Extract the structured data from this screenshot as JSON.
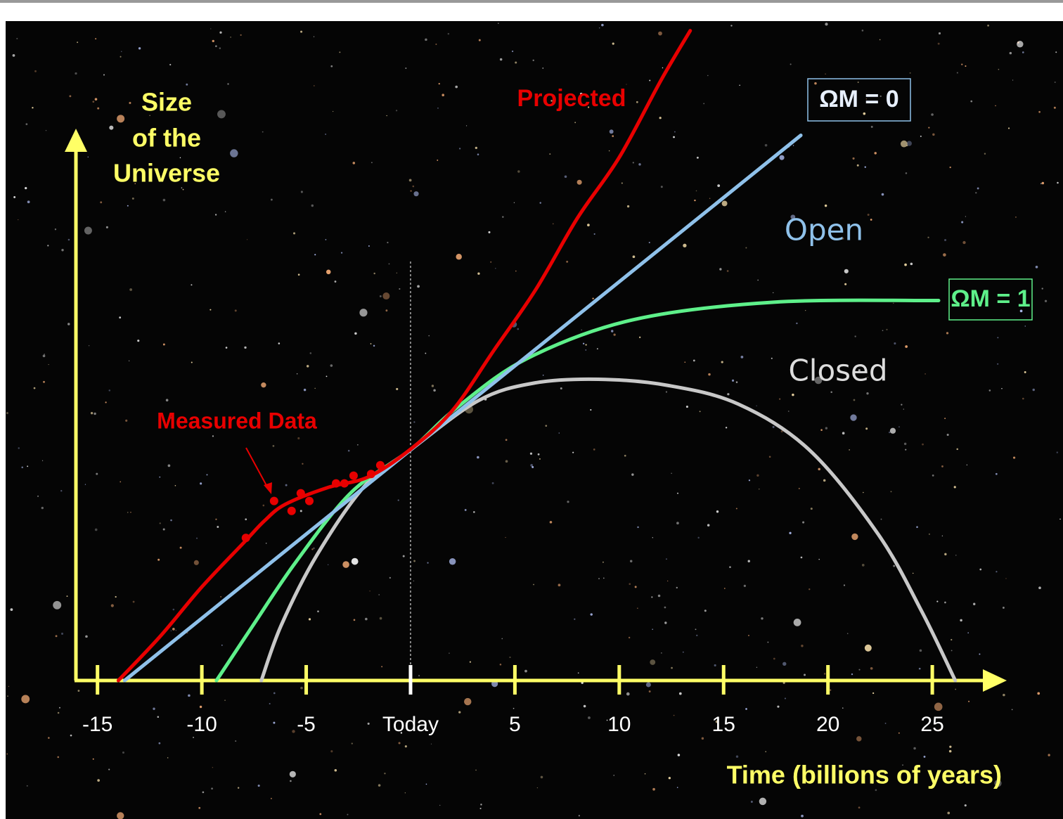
{
  "chart_data": {
    "type": "line",
    "y_label": [
      "Size",
      "of the",
      "Universe"
    ],
    "x_label": "Time (billions of years)",
    "annotations": [
      "Open",
      "Closed"
    ],
    "xlim": [
      -16,
      28.5
    ],
    "ylim": [
      0,
      120
    ],
    "xticks": [
      -15,
      -10,
      -5,
      {
        "value": 0,
        "label": "Today"
      },
      5,
      10,
      15,
      20,
      25
    ],
    "series": [
      {
        "name": "Projected",
        "color": "#e80000",
        "x": [
          -14,
          -12,
          -10,
          -8,
          -7,
          -6,
          -4,
          -2,
          0,
          2,
          4,
          6,
          8,
          10,
          12,
          13.4
        ],
        "values": [
          0,
          8,
          17,
          25,
          29,
          32,
          35,
          37,
          42,
          49,
          60,
          71,
          84,
          95,
          109,
          118
        ]
      },
      {
        "name": "ΩM = 0",
        "color": "#8fc1ea",
        "x": [
          -13.7,
          18.7
        ],
        "values": [
          0,
          99
        ]
      },
      {
        "name": "ΩM = 1",
        "color": "#5ef08a",
        "x": [
          -9.3,
          -7.55,
          -5.5,
          -2.83,
          0,
          2.2,
          5.6,
          10.65,
          17.4,
          25.3
        ],
        "values": [
          0,
          10,
          21.5,
          34.2,
          41.9,
          49.5,
          58.5,
          65.5,
          68.7,
          69
        ]
      },
      {
        "color": "#c8c8c8",
        "x": [
          -7.15,
          -6.2,
          -4.5,
          -2.16,
          0,
          3.24,
          5.9,
          9,
          12.3,
          15.7,
          19.1,
          22.4,
          24.5,
          26.1
        ],
        "values": [
          0,
          10,
          22.7,
          35.5,
          41.9,
          50.8,
          54,
          54.7,
          53.6,
          50.2,
          41.9,
          26.6,
          12.5,
          0
        ]
      },
      {
        "name": "Measured Data",
        "type": "scatter",
        "color": "#e80000",
        "x": [
          -7.89,
          -6.54,
          -5.7,
          -5.26,
          -4.85,
          -3.57,
          -3.17,
          -2.73,
          -1.89,
          -1.45
        ],
        "values": [
          25.9,
          32.6,
          30.8,
          34,
          32.6,
          35.8,
          35.8,
          37.2,
          37.5,
          39.1
        ]
      }
    ]
  }
}
